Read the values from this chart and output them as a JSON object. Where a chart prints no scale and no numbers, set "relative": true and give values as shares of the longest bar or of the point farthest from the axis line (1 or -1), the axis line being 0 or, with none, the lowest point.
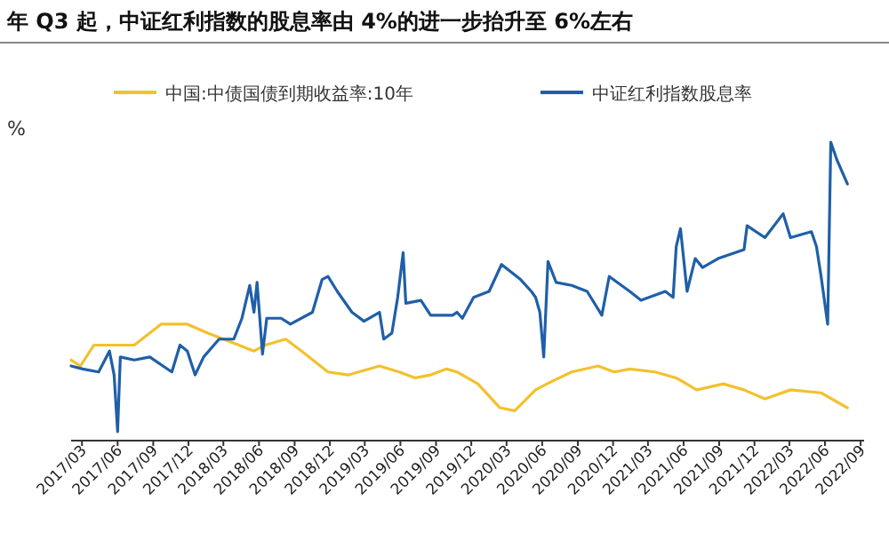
{
  "chart_data": {
    "type": "line",
    "title": "年 Q3 起，中证红利指数的股息率由 4%的进一步抬升至 6%左右",
    "ylabel": "%",
    "relative": true,
    "legend": "top",
    "grid": false,
    "marker": "none",
    "line_style": "solid",
    "xlim": [
      "2017-02-01",
      "2022-09-10"
    ],
    "xticks": [
      {
        "value": "2017-03",
        "label": "2017/03"
      },
      {
        "value": "2017-06",
        "label": "2017/06"
      },
      {
        "value": "2017-09",
        "label": "2017/09"
      },
      {
        "value": "2017-12",
        "label": "2017/12"
      },
      {
        "value": "2018-03",
        "label": "2018/03"
      },
      {
        "value": "2018-06",
        "label": "2018/06"
      },
      {
        "value": "2018-09",
        "label": "2018/09"
      },
      {
        "value": "2018-12",
        "label": "2018/12"
      },
      {
        "value": "2019-03",
        "label": "2019/03"
      },
      {
        "value": "2019-06",
        "label": "2019/06"
      },
      {
        "value": "2019-09",
        "label": "2019/09"
      },
      {
        "value": "2019-12",
        "label": "2019/12"
      },
      {
        "value": "2020-03",
        "label": "2020/03"
      },
      {
        "value": "2020-06",
        "label": "2020/06"
      },
      {
        "value": "2020-09",
        "label": "2020/09"
      },
      {
        "value": "2020-12",
        "label": "2020/12"
      },
      {
        "value": "2021-03",
        "label": "2021/03"
      },
      {
        "value": "2021-06",
        "label": "2021/06"
      },
      {
        "value": "2021-09",
        "label": "2021/09"
      },
      {
        "value": "2021-12",
        "label": "2021/12"
      },
      {
        "value": "2022-03",
        "label": "2022/03"
      },
      {
        "value": "2022-06",
        "label": "2022/06"
      },
      {
        "value": "2022-09",
        "label": "2022/09"
      }
    ],
    "series": [
      {
        "name": "中国:中债国债到期收益率:10年",
        "color": "#f2c12e",
        "x": [
          "2017-02-01",
          "2017-02-25",
          "2017-04-01",
          "2017-05-11",
          "2017-07-14",
          "2017-09-21",
          "2017-11-28",
          "2018-01-20",
          "2018-03-01",
          "2018-04-10",
          "2018-05-19",
          "2018-06-17",
          "2018-08-09",
          "2018-09-19",
          "2018-11-26",
          "2019-01-18",
          "2019-04-08",
          "2019-05-29",
          "2019-07-09",
          "2019-08-18",
          "2019-09-28",
          "2019-10-25",
          "2019-12-18",
          "2020-02-13",
          "2020-03-22",
          "2020-05-15",
          "2020-06-13",
          "2020-08-16",
          "2020-10-23",
          "2020-12-04",
          "2021-01-13",
          "2021-03-20",
          "2021-05-13",
          "2021-07-05",
          "2021-09-12",
          "2021-11-04",
          "2021-12-28",
          "2022-03-04",
          "2022-05-22",
          "2022-07-29"
        ],
        "values": [
          0.27,
          0.25,
          0.32,
          0.32,
          0.32,
          0.39,
          0.39,
          0.36,
          0.34,
          0.32,
          0.3,
          0.32,
          0.34,
          0.3,
          0.23,
          0.22,
          0.25,
          0.23,
          0.21,
          0.22,
          0.24,
          0.23,
          0.19,
          0.11,
          0.1,
          0.17,
          0.19,
          0.23,
          0.25,
          0.23,
          0.24,
          0.23,
          0.21,
          0.17,
          0.19,
          0.17,
          0.14,
          0.17,
          0.16,
          0.11
        ]
      },
      {
        "name": "中证红利指数股息率",
        "color": "#1f5fa8",
        "x": [
          "2017-02-01",
          "2017-03-03",
          "2017-04-13",
          "2017-05-11",
          "2017-05-23",
          "2017-06-01",
          "2017-06-08",
          "2017-07-14",
          "2017-08-23",
          "2017-10-19",
          "2017-11-09",
          "2017-11-28",
          "2017-12-18",
          "2018-01-09",
          "2018-02-18",
          "2018-03-28",
          "2018-04-18",
          "2018-05-08",
          "2018-05-19",
          "2018-05-27",
          "2018-06-10",
          "2018-06-21",
          "2018-07-28",
          "2018-08-21",
          "2018-10-17",
          "2018-11-11",
          "2018-11-26",
          "2018-12-20",
          "2019-01-27",
          "2019-02-27",
          "2019-04-08",
          "2019-04-19",
          "2019-05-10",
          "2019-05-25",
          "2019-06-08",
          "2019-06-15",
          "2019-07-24",
          "2019-08-18",
          "2019-10-14",
          "2019-10-25",
          "2019-11-08",
          "2019-12-07",
          "2020-01-16",
          "2020-02-17",
          "2020-04-06",
          "2020-05-04",
          "2020-05-15",
          "2020-05-26",
          "2020-06-05",
          "2020-06-16",
          "2020-07-07",
          "2020-08-16",
          "2020-09-25",
          "2020-11-02",
          "2020-11-21",
          "2021-01-13",
          "2021-02-11",
          "2021-04-15",
          "2021-05-05",
          "2021-05-13",
          "2021-05-24",
          "2021-06-10",
          "2021-07-01",
          "2021-07-20",
          "2021-08-29",
          "2021-11-04",
          "2021-11-12",
          "2021-12-28",
          "2022-02-13",
          "2022-03-04",
          "2022-04-27",
          "2022-05-10",
          "2022-05-22",
          "2022-06-08",
          "2022-06-16",
          "2022-07-02",
          "2022-07-29"
        ],
        "values": [
          0.25,
          0.24,
          0.23,
          0.3,
          0.22,
          0.03,
          0.28,
          0.27,
          0.28,
          0.23,
          0.32,
          0.3,
          0.22,
          0.28,
          0.34,
          0.34,
          0.41,
          0.52,
          0.43,
          0.53,
          0.29,
          0.41,
          0.41,
          0.39,
          0.43,
          0.54,
          0.55,
          0.5,
          0.43,
          0.4,
          0.43,
          0.34,
          0.36,
          0.48,
          0.63,
          0.46,
          0.47,
          0.42,
          0.42,
          0.43,
          0.41,
          0.48,
          0.5,
          0.59,
          0.54,
          0.5,
          0.48,
          0.43,
          0.28,
          0.6,
          0.53,
          0.52,
          0.5,
          0.42,
          0.55,
          0.5,
          0.47,
          0.5,
          0.48,
          0.65,
          0.71,
          0.5,
          0.61,
          0.58,
          0.61,
          0.64,
          0.72,
          0.68,
          0.76,
          0.68,
          0.7,
          0.65,
          0.55,
          0.39,
          1,
          0.94,
          0.86
        ]
      }
    ]
  }
}
